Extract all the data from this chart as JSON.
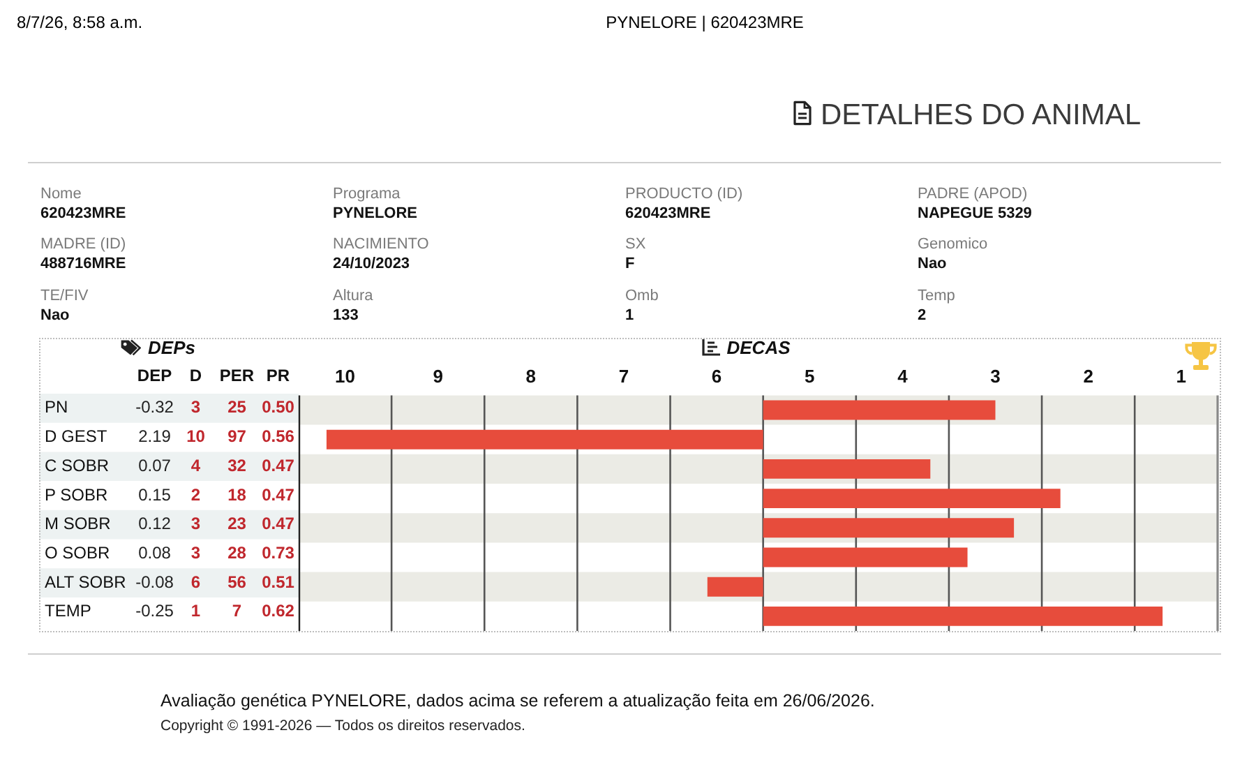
{
  "chart_data": [
    {
      "type": "other",
      "title": "DETALHES DO ANIMAL",
      "annotations": [
        "8/7/26, 8:58 a.m.",
        "PYNELORE | 620423MRE",
        "Nome",
        "620423MRE",
        "Programa",
        "PYNELORE",
        "PRODUCTO (ID)",
        "620423MRE",
        "PADRE (APOD)",
        "NAPEGUE 5329",
        "MADRE (ID)",
        "488716MRE",
        "NACIMIENTO",
        "24/10/2023",
        "SX",
        "F",
        "Genomico",
        "Nao",
        "TE/FIV",
        "Nao",
        "Altura",
        "133",
        "Omb",
        "1",
        "Temp",
        "2",
        "Avaliação genética PYNELORE, dados acima se referem a atualização feita em 26/06/2026.",
        "Copyright © 1991-2026 — Todos os direitos reservados."
      ]
    },
    {
      "type": "heatmap",
      "title": "DEPs",
      "categories": [
        "DEP",
        "D",
        "PER",
        "PR"
      ],
      "y_categories": [
        "PN",
        "D GEST",
        "C SOBR",
        "P SOBR",
        "M SOBR",
        "O SOBR",
        "ALT SOBR",
        "TEMP"
      ],
      "cells": [
        [
          -0.32,
          3,
          25,
          0.5
        ],
        [
          2.19,
          10,
          97,
          0.56
        ],
        [
          0.07,
          4,
          32,
          0.47
        ],
        [
          0.15,
          2,
          18,
          0.47
        ],
        [
          0.12,
          3,
          23,
          0.47
        ],
        [
          0.08,
          3,
          28,
          0.73
        ],
        [
          -0.08,
          6,
          56,
          0.51
        ],
        [
          -0.25,
          1,
          7,
          0.62
        ]
      ],
      "cell_labels": [
        [
          "-0.32",
          "3",
          "25",
          "0.50"
        ],
        [
          "2.19",
          "10",
          "97",
          "0.56"
        ],
        [
          "0.07",
          "4",
          "32",
          "0.47"
        ],
        [
          "0.15",
          "2",
          "18",
          "0.47"
        ],
        [
          "0.12",
          "3",
          "23",
          "0.47"
        ],
        [
          "0.08",
          "3",
          "28",
          "0.73"
        ],
        [
          "-0.08",
          "6",
          "56",
          "0.51"
        ],
        [
          "-0.25",
          "1",
          "7",
          "0.62"
        ]
      ],
      "bands": [
        {
          "axis": "y",
          "from": "PN",
          "to": "PN",
          "color": "#edf2f2"
        },
        {
          "axis": "y",
          "from": "C SOBR",
          "to": "C SOBR",
          "color": "#edf2f2"
        },
        {
          "axis": "y",
          "from": "M SOBR",
          "to": "M SOBR",
          "color": "#edf2f2"
        },
        {
          "axis": "y",
          "from": "ALT SOBR",
          "to": "ALT SOBR",
          "color": "#edf2f2"
        }
      ]
    },
    {
      "type": "bar",
      "title": "DECAS",
      "orientation": "horizontal",
      "categories": [
        "PN",
        "D GEST",
        "C SOBR",
        "P SOBR",
        "M SOBR",
        "O SOBR",
        "ALT SOBR",
        "TEMP"
      ],
      "base": [
        5.5,
        5.5,
        5.5,
        5.5,
        5.5,
        5.5,
        5.5,
        5.5
      ],
      "values": [
        -2.5,
        4.7,
        -1.8,
        -3.2,
        -2.7,
        -2.2,
        0.6,
        -4.3
      ],
      "color": "#e74c3c",
      "xlim": [
        10.5,
        0.6
      ],
      "xticks": [
        10,
        9,
        8,
        7,
        6,
        5,
        4,
        3,
        2,
        1
      ],
      "tick_labels": "x",
      "ref_lines": [
        {
          "axis": "x",
          "value": 9.5
        },
        {
          "axis": "x",
          "value": 8.5
        },
        {
          "axis": "x",
          "value": 7.5
        },
        {
          "axis": "x",
          "value": 6.5
        },
        {
          "axis": "x",
          "value": 5.5
        },
        {
          "axis": "x",
          "value": 4.5
        },
        {
          "axis": "x",
          "value": 3.5
        },
        {
          "axis": "x",
          "value": 2.5
        },
        {
          "axis": "x",
          "value": 1.5
        }
      ],
      "bands": [
        {
          "axis": "y",
          "from": "PN",
          "to": "PN",
          "color": "#ebebe5"
        },
        {
          "axis": "y",
          "from": "C SOBR",
          "to": "C SOBR",
          "color": "#ebebe5"
        },
        {
          "axis": "y",
          "from": "M SOBR",
          "to": "M SOBR",
          "color": "#ebebe5"
        },
        {
          "axis": "y",
          "from": "ALT SOBR",
          "to": "ALT SOBR",
          "color": "#ebebe5"
        }
      ]
    }
  ]
}
